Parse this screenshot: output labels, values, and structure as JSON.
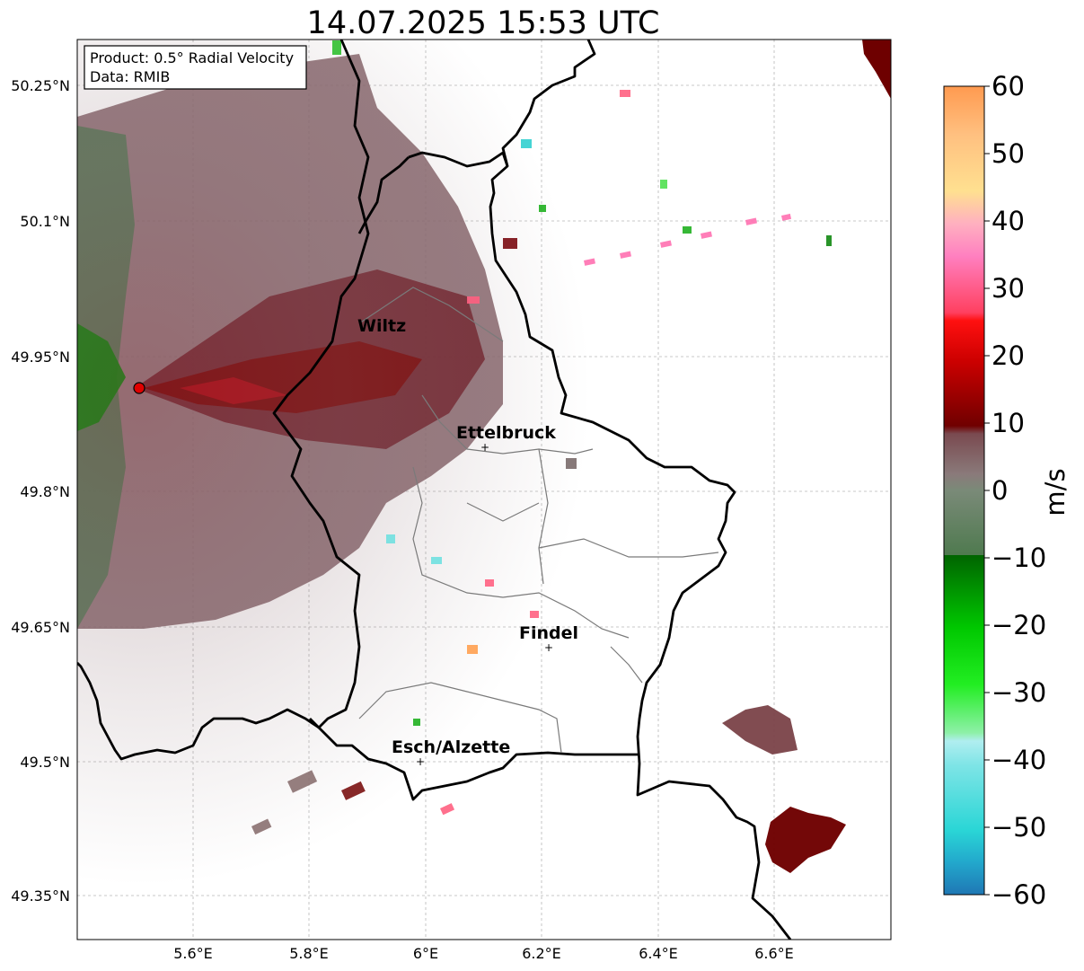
{
  "title": "14.07.2025 15:53 UTC",
  "info_box": {
    "product": "Product: 0.5° Radial Velocity",
    "source": "Data: RMIB"
  },
  "axes": {
    "lon_labels": [
      "5.6°E",
      "5.8°E",
      "6°E",
      "6.2°E",
      "6.4°E",
      "6.6°E"
    ],
    "lat_labels": [
      "50.25°N",
      "50.1°N",
      "49.95°N",
      "49.8°N",
      "49.65°N",
      "49.5°N",
      "49.35°N"
    ]
  },
  "cities": [
    {
      "name": "Wiltz"
    },
    {
      "name": "Ettelbruck"
    },
    {
      "name": "Findel"
    },
    {
      "name": "Esch/Alzette"
    }
  ],
  "colorbar": {
    "label": "m/s",
    "ticks": [
      "60",
      "50",
      "40",
      "30",
      "20",
      "10",
      "0",
      "−10",
      "−20",
      "−30",
      "−40",
      "−50",
      "−60"
    ],
    "range": [
      -60,
      60
    ],
    "colors": [
      "#1f77b4",
      "#2ad6d6",
      "#b0eef0",
      "#8ef0a8",
      "#00ee00",
      "#007a00",
      "#5c7a5c",
      "#8a7a7a",
      "#7a3a3a",
      "#700000",
      "#ee0000",
      "#ff5070",
      "#ff90c8",
      "#ffd090",
      "#ffa050"
    ]
  }
}
